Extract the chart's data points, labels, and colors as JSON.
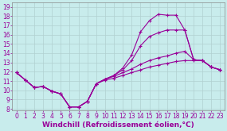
{
  "bg_color": "#c8ecec",
  "line_color": "#990099",
  "xlim": [
    -0.5,
    23.5
  ],
  "ylim": [
    7.8,
    19.5
  ],
  "xticks": [
    0,
    1,
    2,
    3,
    4,
    5,
    6,
    7,
    8,
    9,
    10,
    11,
    12,
    13,
    14,
    15,
    16,
    17,
    18,
    19,
    20,
    21,
    22,
    23
  ],
  "yticks": [
    8,
    9,
    10,
    11,
    12,
    13,
    14,
    15,
    16,
    17,
    18,
    19
  ],
  "curves": [
    [
      11.9,
      11.1,
      10.3,
      10.4,
      9.9,
      9.6,
      8.2,
      8.2,
      8.8,
      10.7,
      11.2,
      11.6,
      12.4,
      13.8,
      16.3,
      17.5,
      18.2,
      18.1,
      18.1,
      16.5,
      13.3,
      13.2,
      12.5,
      12.2
    ],
    [
      11.9,
      11.1,
      10.3,
      10.4,
      9.9,
      9.6,
      8.2,
      8.2,
      8.8,
      10.7,
      11.2,
      11.6,
      12.2,
      13.2,
      14.8,
      15.8,
      16.2,
      16.5,
      16.5,
      16.5,
      13.3,
      13.2,
      12.5,
      12.2
    ],
    [
      11.9,
      11.1,
      10.3,
      10.4,
      9.9,
      9.6,
      8.2,
      8.2,
      8.8,
      10.7,
      11.2,
      11.5,
      11.9,
      12.3,
      12.8,
      13.2,
      13.5,
      13.7,
      14.0,
      14.2,
      13.3,
      13.2,
      12.5,
      12.2
    ],
    [
      11.9,
      11.1,
      10.3,
      10.4,
      9.9,
      9.6,
      8.2,
      8.2,
      8.8,
      10.7,
      11.1,
      11.3,
      11.6,
      11.9,
      12.2,
      12.5,
      12.7,
      12.9,
      13.1,
      13.2,
      13.2,
      13.2,
      12.5,
      12.2
    ]
  ],
  "xlabel": "Windchill (Refroidissement éolien,°C)",
  "xlabel_fontsize": 6.5,
  "xlabel_color": "#990099",
  "tick_fontsize": 5.5,
  "tick_color": "#990099",
  "grid_color": "#b0d0d0",
  "grid_linewidth": 0.5,
  "linewidth": 0.8,
  "marker": "+",
  "marker_size": 3.5,
  "marker_linewidth": 0.8
}
